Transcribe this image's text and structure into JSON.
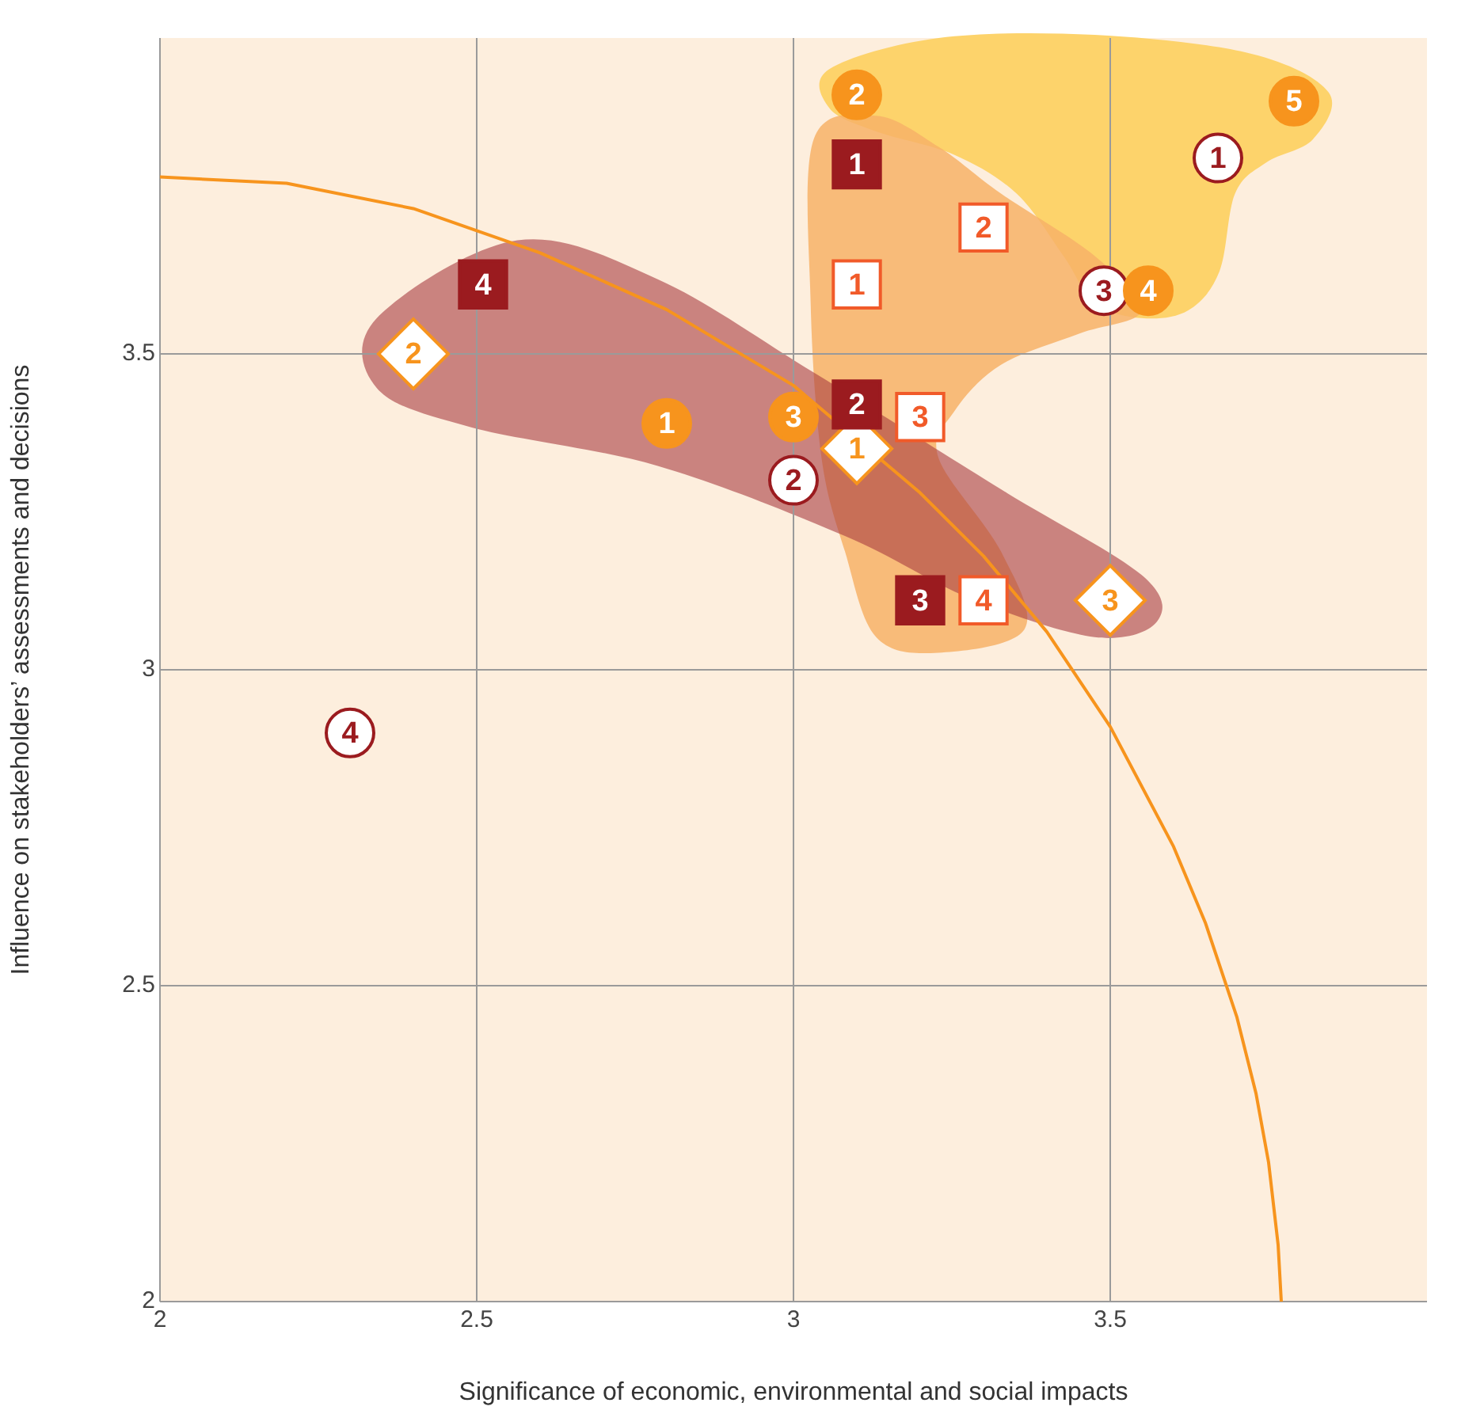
{
  "chart_data": {
    "type": "scatter",
    "xlabel": "Significance of economic, environmental and social impacts",
    "ylabel": "Influence on stakeholders’ assessments and decisions",
    "xlim": [
      2,
      4
    ],
    "ylim": [
      2,
      4
    ],
    "xticks": [
      2,
      2.5,
      3,
      3.5
    ],
    "yticks": [
      2,
      2.5,
      3,
      3.5
    ],
    "grid": true,
    "legend": false,
    "series": [
      {
        "type": "line",
        "color": "#f7941d",
        "marker": "none",
        "x": [
          2.0,
          2.2,
          2.4,
          2.6,
          2.8,
          3.0,
          3.2,
          3.3,
          3.4,
          3.5,
          3.6,
          3.65,
          3.7,
          3.73,
          3.75,
          3.765,
          3.77
        ],
        "values": [
          3.78,
          3.77,
          3.73,
          3.66,
          3.57,
          3.45,
          3.28,
          3.18,
          3.06,
          2.91,
          2.72,
          2.6,
          2.45,
          2.33,
          2.22,
          2.09,
          2.0
        ]
      },
      {
        "marker": "circle",
        "color": "#f7941d",
        "x": [
          3.1,
          3.79,
          3.56,
          2.8,
          3.0
        ],
        "values": [
          3.91,
          3.9,
          3.6,
          3.39,
          3.4
        ]
      },
      {
        "marker": "circle",
        "color": "#9b1b1f",
        "colors": [
          "#ffffff",
          "#ffffff",
          "#ffffff",
          "#ffffff"
        ],
        "x": [
          3.67,
          3.49,
          3.0,
          2.3
        ],
        "values": [
          3.81,
          3.6,
          3.3,
          2.9
        ]
      },
      {
        "marker": "square",
        "color": "#9b1b1f",
        "x": [
          3.1,
          2.51,
          3.1,
          3.2
        ],
        "values": [
          3.8,
          3.61,
          3.42,
          3.11
        ]
      },
      {
        "marker": "square",
        "color": "#f15a29",
        "colors": [
          "#ffffff",
          "#ffffff",
          "#ffffff",
          "#ffffff"
        ],
        "x": [
          3.3,
          3.1,
          3.2,
          3.3
        ],
        "values": [
          3.7,
          3.61,
          3.4,
          3.11
        ]
      },
      {
        "marker": "diamond",
        "color": "#f7941d",
        "colors": [
          "#ffffff",
          "#ffffff",
          "#ffffff"
        ],
        "x": [
          2.4,
          3.1,
          3.5
        ],
        "values": [
          3.5,
          3.35,
          3.11
        ]
      }
    ],
    "annotations": [
      {
        "text": "2",
        "x": 3.1,
        "y": 3.91
      },
      {
        "text": "5",
        "x": 3.79,
        "y": 3.9
      },
      {
        "text": "4",
        "x": 3.56,
        "y": 3.6
      },
      {
        "text": "1",
        "x": 2.8,
        "y": 3.39
      },
      {
        "text": "3",
        "x": 3.0,
        "y": 3.4
      },
      {
        "text": "1",
        "x": 3.67,
        "y": 3.81
      },
      {
        "text": "3",
        "x": 3.49,
        "y": 3.6
      },
      {
        "text": "2",
        "x": 3.0,
        "y": 3.3
      },
      {
        "text": "4",
        "x": 2.3,
        "y": 2.9
      },
      {
        "text": "1",
        "x": 3.1,
        "y": 3.8
      },
      {
        "text": "4",
        "x": 2.51,
        "y": 3.61
      },
      {
        "text": "2",
        "x": 3.1,
        "y": 3.42
      },
      {
        "text": "3",
        "x": 3.2,
        "y": 3.11
      },
      {
        "text": "2",
        "x": 3.3,
        "y": 3.7
      },
      {
        "text": "1",
        "x": 3.1,
        "y": 3.61
      },
      {
        "text": "3",
        "x": 3.2,
        "y": 3.4
      },
      {
        "text": "4",
        "x": 3.3,
        "y": 3.11
      },
      {
        "text": "2",
        "x": 2.4,
        "y": 3.5
      },
      {
        "text": "1",
        "x": 3.1,
        "y": 3.35
      },
      {
        "text": "3",
        "x": 3.5,
        "y": 3.11
      }
    ]
  }
}
